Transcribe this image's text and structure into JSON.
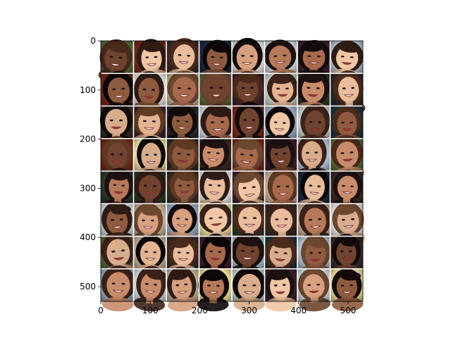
{
  "image_grid": {
    "rows": 8,
    "cols": 8,
    "x_extent": [
      0,
      530
    ],
    "y_extent": [
      530,
      0
    ],
    "x_ticks": [
      0,
      100,
      200,
      300,
      400,
      500
    ],
    "y_ticks": [
      0,
      100,
      200,
      300,
      400,
      500
    ],
    "x_tick_labels": [
      "0",
      "100",
      "200",
      "300",
      "400",
      "500"
    ],
    "y_tick_labels": [
      "0",
      "100",
      "200",
      "300",
      "400",
      "500"
    ],
    "separator_color": "#ffffff",
    "frame_color": "#000000",
    "palette": {
      "skin_tones": [
        "#d7a07f",
        "#c98c6b",
        "#b77958",
        "#e4b391",
        "#8f5b3f",
        "#f0c6a4",
        "#6f4330",
        "#d8ad8c",
        "#a8694d",
        "#e9bd9c"
      ],
      "hair_tones": [
        "#1c1110",
        "#2e1b14",
        "#4a2a1b",
        "#5f3a22",
        "#120b0a",
        "#6b4730",
        "#3b2218",
        "#0c0606"
      ],
      "backgrounds": [
        "#101010",
        "#f3f1ec",
        "#2c3a2a",
        "#20343c",
        "#3a2b24",
        "#c9b79c",
        "#dde6ea",
        "#402030",
        "#1b2a44",
        "#f6e7a2",
        "#5a6f3b",
        "#9fb3c8",
        "#7a2a1a",
        "#cfd8d0",
        "#2a2a2a",
        "#b8c8d8"
      ]
    }
  }
}
